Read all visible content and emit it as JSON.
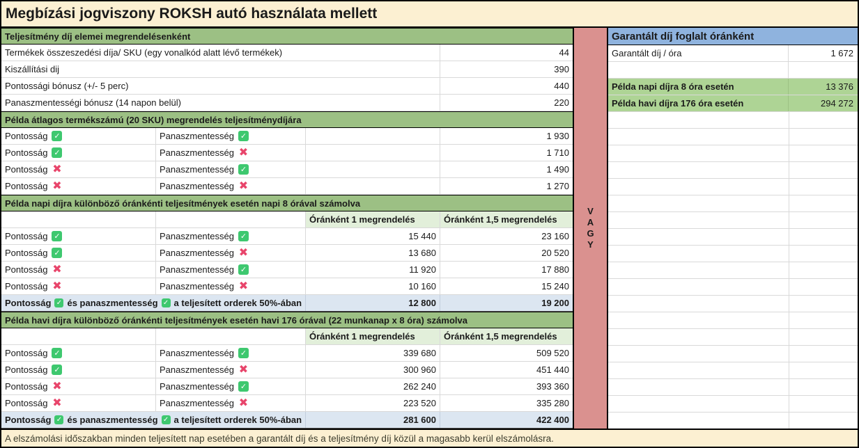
{
  "title": "Megbízási jogviszony ROKSH autó használata mellett",
  "icons": {
    "check": "✓",
    "cross": "✖"
  },
  "colors": {
    "section_header_green": "#9cc084",
    "column_header_green": "#e2efda",
    "guaranteed_header_blue": "#8fb3de",
    "example_row_green": "#aed495",
    "divider_pink": "#da918f",
    "special_row_blue": "#dce6f1",
    "cream": "#fcf0d2",
    "check_green": "#3ec86f",
    "cross_red": "#e8456b"
  },
  "labels": {
    "pontossag": "Pontosság",
    "panaszmentesseg": "Panaszmentesség",
    "special_mid": "és panaszmentesség",
    "special_tail": "a teljesített orderek 50%-ában"
  },
  "left_table": {
    "section1_header": "Teljesítmény díj elemei megrendelésenként",
    "fee_rows": [
      {
        "label": "Termékek összeszedési díja/ SKU (egy vonalkód alatt lévő termékek)",
        "value": "44"
      },
      {
        "label": "Kiszállítási dij",
        "value": "390"
      },
      {
        "label": "Pontossági bónusz (+/- 5 perc)",
        "value": "440"
      },
      {
        "label": "Panaszmentességi bónusz (14 napon belül)",
        "value": "220"
      }
    ],
    "section2_header": "Példa átlagos termékszámú (20 SKU) megrendelés teljesítménydíjára",
    "order_rows": [
      {
        "pontossag": true,
        "panaszmentesseg": true,
        "value": "1 930"
      },
      {
        "pontossag": true,
        "panaszmentesseg": false,
        "value": "1 710"
      },
      {
        "pontossag": false,
        "panaszmentesseg": true,
        "value": "1 490"
      },
      {
        "pontossag": false,
        "panaszmentesseg": false,
        "value": "1 270"
      }
    ],
    "section3_header": "Példa napi díjra különböző óránkénti teljesítmények esetén napi 8 órával számolva",
    "col_headers": {
      "col1": "Óránként 1 megrendelés",
      "col2": "Óránként 1,5 megrendelés"
    },
    "daily_rows": [
      {
        "pontossag": true,
        "panaszmentesseg": true,
        "v1": "15 440",
        "v2": "23 160"
      },
      {
        "pontossag": true,
        "panaszmentesseg": false,
        "v1": "13 680",
        "v2": "20 520"
      },
      {
        "pontossag": false,
        "panaszmentesseg": true,
        "v1": "11 920",
        "v2": "17 880"
      },
      {
        "pontossag": false,
        "panaszmentesseg": false,
        "v1": "10 160",
        "v2": "15 240"
      }
    ],
    "daily_special": {
      "v1": "12 800",
      "v2": "19 200"
    },
    "section4_header": "Példa havi díjra különböző óránkénti teljesítmények esetén havi 176 órával (22 munkanap x 8 óra) számolva",
    "monthly_rows": [
      {
        "pontossag": true,
        "panaszmentesseg": true,
        "v1": "339 680",
        "v2": "509 520"
      },
      {
        "pontossag": true,
        "panaszmentesseg": false,
        "v1": "300 960",
        "v2": "451 440"
      },
      {
        "pontossag": false,
        "panaszmentesseg": true,
        "v1": "262 240",
        "v2": "393 360"
      },
      {
        "pontossag": false,
        "panaszmentesseg": false,
        "v1": "223 520",
        "v2": "335 280"
      }
    ],
    "monthly_special": {
      "v1": "281 600",
      "v2": "422 400"
    }
  },
  "divider": {
    "word": "VAGY",
    "letters": [
      "V",
      "A",
      "G",
      "Y"
    ]
  },
  "right_table": {
    "header": "Garantált díj foglalt óránként",
    "rate_row": {
      "label": "Garantált díj / óra",
      "value": "1 672"
    },
    "daily_row": {
      "label": "Példa napi díjra 8 óra esetén",
      "value": "13 376"
    },
    "monthly_row": {
      "label": "Példa havi díjra 176 óra esetén",
      "value": "294 272"
    }
  },
  "footer": "A elszámolási időszakban minden teljesített nap esetében a garantált díj és a teljesítmény díj közül a magasabb kerül elszámolásra."
}
